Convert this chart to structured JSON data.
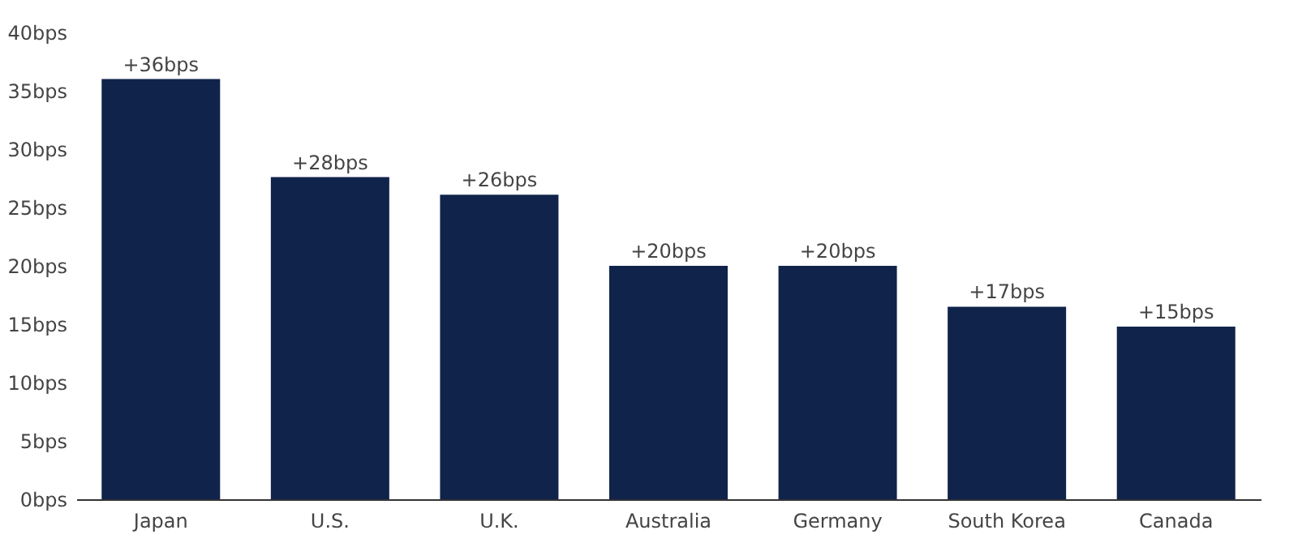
{
  "chart_data": {
    "type": "bar",
    "categories": [
      "Japan",
      "U.S.",
      "U.K.",
      "Australia",
      "Germany",
      "South Korea",
      "Canada"
    ],
    "values": [
      36,
      27.6,
      26.1,
      20,
      20,
      16.5,
      14.8
    ],
    "value_labels": [
      "+36bps",
      "+28bps",
      "+26bps",
      "+20bps",
      "+20bps",
      "+17bps",
      "+15bps"
    ],
    "color": "#10234a",
    "ylim": [
      0,
      40
    ],
    "yticks": [
      {
        "value": 0,
        "label": "0bps"
      },
      {
        "value": 5,
        "label": "5bps"
      },
      {
        "value": 10,
        "label": "10bps"
      },
      {
        "value": 15,
        "label": "15bps"
      },
      {
        "value": 20,
        "label": "20bps"
      },
      {
        "value": 25,
        "label": "25bps"
      },
      {
        "value": 30,
        "label": "30bps"
      },
      {
        "value": 35,
        "label": "35bps"
      },
      {
        "value": 40,
        "label": "40bps"
      }
    ],
    "grid": false
  }
}
